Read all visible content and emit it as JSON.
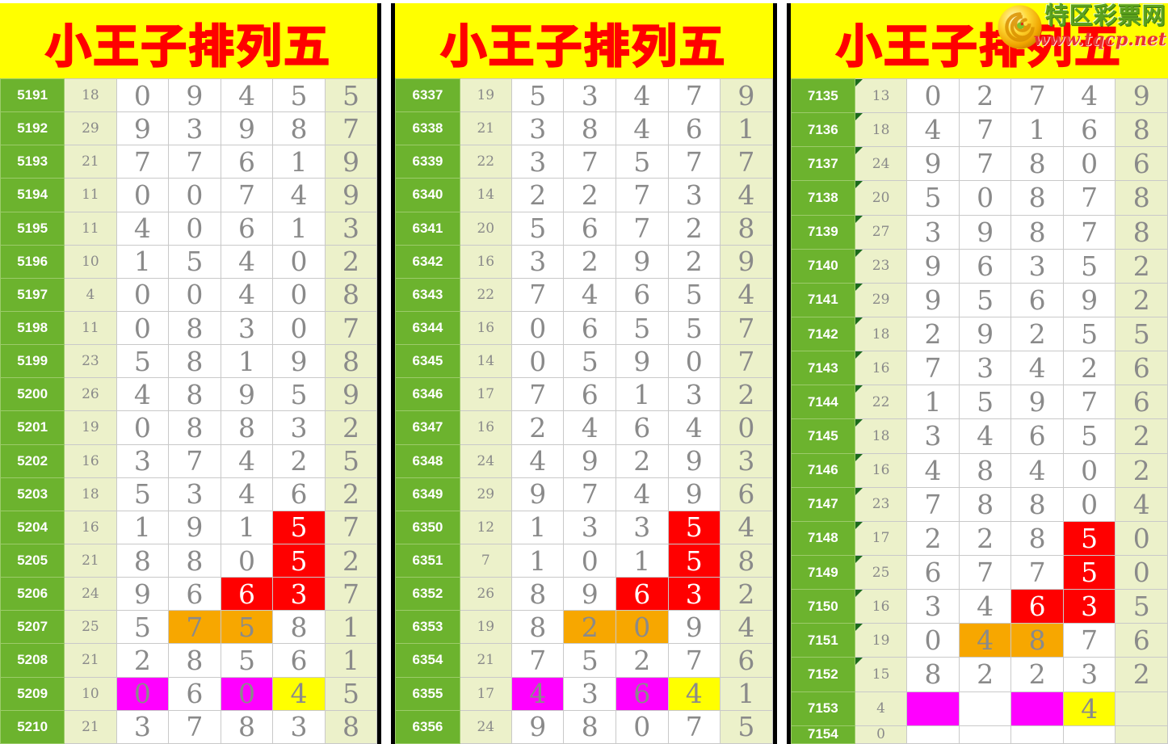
{
  "site": {
    "name": "特区彩票网",
    "url": "www.tqcp.net"
  },
  "colors": {
    "header_background": "#ffff00",
    "title_red": "#ff0000",
    "issue_green": "#6cb32e",
    "pale_cell": "#ecf1ca",
    "digit_gray": "#8a8a8a",
    "highlight_red": "#ff0000",
    "highlight_orange": "#f7a700",
    "highlight_magenta": "#ff00ff",
    "highlight_yellow": "#ffff00",
    "corner_triangle_green": "#1c6b1c",
    "panel_divider": "#000000"
  },
  "panels": [
    {
      "title": "小王子排列五",
      "rows": [
        {
          "issue": "5191",
          "count": "18",
          "digits": [
            "0",
            "9",
            "4",
            "5",
            "5"
          ],
          "hl": [
            "",
            "",
            "",
            "",
            ""
          ]
        },
        {
          "issue": "5192",
          "count": "29",
          "digits": [
            "9",
            "3",
            "9",
            "8",
            "7"
          ],
          "hl": [
            "",
            "",
            "",
            "",
            ""
          ]
        },
        {
          "issue": "5193",
          "count": "21",
          "digits": [
            "7",
            "7",
            "6",
            "1",
            "9"
          ],
          "hl": [
            "",
            "",
            "",
            "",
            ""
          ]
        },
        {
          "issue": "5194",
          "count": "11",
          "digits": [
            "0",
            "0",
            "7",
            "4",
            "9"
          ],
          "hl": [
            "",
            "",
            "",
            "",
            ""
          ]
        },
        {
          "issue": "5195",
          "count": "11",
          "digits": [
            "4",
            "0",
            "6",
            "1",
            "3"
          ],
          "hl": [
            "",
            "",
            "",
            "",
            ""
          ]
        },
        {
          "issue": "5196",
          "count": "10",
          "digits": [
            "1",
            "5",
            "4",
            "0",
            "2"
          ],
          "hl": [
            "",
            "",
            "",
            "",
            ""
          ]
        },
        {
          "issue": "5197",
          "count": "4",
          "digits": [
            "0",
            "0",
            "4",
            "0",
            "8"
          ],
          "hl": [
            "",
            "",
            "",
            "",
            ""
          ]
        },
        {
          "issue": "5198",
          "count": "11",
          "digits": [
            "0",
            "8",
            "3",
            "0",
            "7"
          ],
          "hl": [
            "",
            "",
            "",
            "",
            ""
          ]
        },
        {
          "issue": "5199",
          "count": "23",
          "digits": [
            "5",
            "8",
            "1",
            "9",
            "8"
          ],
          "hl": [
            "",
            "",
            "",
            "",
            ""
          ]
        },
        {
          "issue": "5200",
          "count": "26",
          "digits": [
            "4",
            "8",
            "9",
            "5",
            "9"
          ],
          "hl": [
            "",
            "",
            "",
            "",
            ""
          ]
        },
        {
          "issue": "5201",
          "count": "19",
          "digits": [
            "0",
            "8",
            "8",
            "3",
            "2"
          ],
          "hl": [
            "",
            "",
            "",
            "",
            ""
          ]
        },
        {
          "issue": "5202",
          "count": "16",
          "digits": [
            "3",
            "7",
            "4",
            "2",
            "5"
          ],
          "hl": [
            "",
            "",
            "",
            "",
            ""
          ]
        },
        {
          "issue": "5203",
          "count": "18",
          "digits": [
            "5",
            "3",
            "4",
            "6",
            "2"
          ],
          "hl": [
            "",
            "",
            "",
            "",
            ""
          ]
        },
        {
          "issue": "5204",
          "count": "16",
          "digits": [
            "1",
            "9",
            "1",
            "5",
            "7"
          ],
          "hl": [
            "",
            "",
            "",
            "r",
            ""
          ]
        },
        {
          "issue": "5205",
          "count": "21",
          "digits": [
            "8",
            "8",
            "0",
            "5",
            "2"
          ],
          "hl": [
            "",
            "",
            "",
            "r",
            ""
          ]
        },
        {
          "issue": "5206",
          "count": "24",
          "digits": [
            "9",
            "6",
            "6",
            "3",
            "7"
          ],
          "hl": [
            "",
            "",
            "r",
            "r",
            ""
          ]
        },
        {
          "issue": "5207",
          "count": "25",
          "digits": [
            "5",
            "7",
            "5",
            "8",
            "1"
          ],
          "hl": [
            "",
            "o",
            "o",
            "",
            ""
          ]
        },
        {
          "issue": "5208",
          "count": "21",
          "digits": [
            "2",
            "8",
            "5",
            "6",
            "1"
          ],
          "hl": [
            "",
            "",
            "",
            "",
            ""
          ]
        },
        {
          "issue": "5209",
          "count": "10",
          "digits": [
            "0",
            "6",
            "0",
            "4",
            "5"
          ],
          "hl": [
            "m",
            "",
            "m",
            "y",
            ""
          ]
        },
        {
          "issue": "5210",
          "count": "21",
          "digits": [
            "3",
            "7",
            "8",
            "3",
            "8"
          ],
          "hl": [
            "",
            "",
            "",
            "",
            ""
          ]
        }
      ]
    },
    {
      "title": "小王子排列五",
      "rows": [
        {
          "issue": "6337",
          "count": "19",
          "digits": [
            "5",
            "3",
            "4",
            "7",
            "9"
          ],
          "hl": [
            "",
            "",
            "",
            "",
            ""
          ]
        },
        {
          "issue": "6338",
          "count": "21",
          "digits": [
            "3",
            "8",
            "4",
            "6",
            "1"
          ],
          "hl": [
            "",
            "",
            "",
            "",
            ""
          ]
        },
        {
          "issue": "6339",
          "count": "22",
          "digits": [
            "3",
            "7",
            "5",
            "7",
            "7"
          ],
          "hl": [
            "",
            "",
            "",
            "",
            ""
          ]
        },
        {
          "issue": "6340",
          "count": "14",
          "digits": [
            "2",
            "2",
            "7",
            "3",
            "4"
          ],
          "hl": [
            "",
            "",
            "",
            "",
            ""
          ]
        },
        {
          "issue": "6341",
          "count": "20",
          "digits": [
            "5",
            "6",
            "7",
            "2",
            "8"
          ],
          "hl": [
            "",
            "",
            "",
            "",
            ""
          ]
        },
        {
          "issue": "6342",
          "count": "16",
          "digits": [
            "3",
            "2",
            "9",
            "2",
            "9"
          ],
          "hl": [
            "",
            "",
            "",
            "",
            ""
          ]
        },
        {
          "issue": "6343",
          "count": "22",
          "digits": [
            "7",
            "4",
            "6",
            "5",
            "4"
          ],
          "hl": [
            "",
            "",
            "",
            "",
            ""
          ]
        },
        {
          "issue": "6344",
          "count": "16",
          "digits": [
            "0",
            "6",
            "5",
            "5",
            "7"
          ],
          "hl": [
            "",
            "",
            "",
            "",
            ""
          ]
        },
        {
          "issue": "6345",
          "count": "14",
          "digits": [
            "0",
            "5",
            "9",
            "0",
            "7"
          ],
          "hl": [
            "",
            "",
            "",
            "",
            ""
          ]
        },
        {
          "issue": "6346",
          "count": "17",
          "digits": [
            "7",
            "6",
            "1",
            "3",
            "2"
          ],
          "hl": [
            "",
            "",
            "",
            "",
            ""
          ]
        },
        {
          "issue": "6347",
          "count": "16",
          "digits": [
            "2",
            "4",
            "6",
            "4",
            "0"
          ],
          "hl": [
            "",
            "",
            "",
            "",
            ""
          ]
        },
        {
          "issue": "6348",
          "count": "24",
          "digits": [
            "4",
            "9",
            "2",
            "9",
            "3"
          ],
          "hl": [
            "",
            "",
            "",
            "",
            ""
          ]
        },
        {
          "issue": "6349",
          "count": "29",
          "digits": [
            "9",
            "7",
            "4",
            "9",
            "6"
          ],
          "hl": [
            "",
            "",
            "",
            "",
            ""
          ]
        },
        {
          "issue": "6350",
          "count": "12",
          "digits": [
            "1",
            "3",
            "3",
            "5",
            "4"
          ],
          "hl": [
            "",
            "",
            "",
            "r",
            ""
          ]
        },
        {
          "issue": "6351",
          "count": "7",
          "digits": [
            "1",
            "0",
            "1",
            "5",
            "8"
          ],
          "hl": [
            "",
            "",
            "",
            "r",
            ""
          ]
        },
        {
          "issue": "6352",
          "count": "26",
          "digits": [
            "8",
            "9",
            "6",
            "3",
            "2"
          ],
          "hl": [
            "",
            "",
            "r",
            "r",
            ""
          ]
        },
        {
          "issue": "6353",
          "count": "19",
          "digits": [
            "8",
            "2",
            "0",
            "9",
            "4"
          ],
          "hl": [
            "",
            "o",
            "o",
            "",
            ""
          ]
        },
        {
          "issue": "6354",
          "count": "21",
          "digits": [
            "7",
            "5",
            "2",
            "7",
            "6"
          ],
          "hl": [
            "",
            "",
            "",
            "",
            ""
          ]
        },
        {
          "issue": "6355",
          "count": "17",
          "digits": [
            "4",
            "3",
            "6",
            "4",
            "1"
          ],
          "hl": [
            "m",
            "",
            "m",
            "y",
            ""
          ]
        },
        {
          "issue": "6356",
          "count": "24",
          "digits": [
            "9",
            "8",
            "0",
            "7",
            "5"
          ],
          "hl": [
            "",
            "",
            "",
            "",
            ""
          ]
        }
      ]
    },
    {
      "title": "小王子排列五",
      "rows": [
        {
          "issue": "7135",
          "count": "13",
          "digits": [
            "0",
            "2",
            "7",
            "4",
            "9"
          ],
          "hl": [
            "",
            "",
            "",
            "",
            ""
          ],
          "tri": true
        },
        {
          "issue": "7136",
          "count": "18",
          "digits": [
            "4",
            "7",
            "1",
            "6",
            "8"
          ],
          "hl": [
            "",
            "",
            "",
            "",
            ""
          ],
          "tri": true
        },
        {
          "issue": "7137",
          "count": "24",
          "digits": [
            "9",
            "7",
            "8",
            "0",
            "6"
          ],
          "hl": [
            "",
            "",
            "",
            "",
            ""
          ],
          "tri": true
        },
        {
          "issue": "7138",
          "count": "20",
          "digits": [
            "5",
            "0",
            "8",
            "7",
            "8"
          ],
          "hl": [
            "",
            "",
            "",
            "",
            ""
          ],
          "tri": true
        },
        {
          "issue": "7139",
          "count": "27",
          "digits": [
            "3",
            "9",
            "8",
            "7",
            "8"
          ],
          "hl": [
            "",
            "",
            "",
            "",
            ""
          ],
          "tri": true
        },
        {
          "issue": "7140",
          "count": "23",
          "digits": [
            "9",
            "6",
            "3",
            "5",
            "2"
          ],
          "hl": [
            "",
            "",
            "",
            "",
            ""
          ],
          "tri": true
        },
        {
          "issue": "7141",
          "count": "29",
          "digits": [
            "9",
            "5",
            "6",
            "9",
            "2"
          ],
          "hl": [
            "",
            "",
            "",
            "",
            ""
          ],
          "tri": true
        },
        {
          "issue": "7142",
          "count": "18",
          "digits": [
            "2",
            "9",
            "2",
            "5",
            "5"
          ],
          "hl": [
            "",
            "",
            "",
            "",
            ""
          ],
          "tri": true
        },
        {
          "issue": "7143",
          "count": "16",
          "digits": [
            "7",
            "3",
            "4",
            "2",
            "6"
          ],
          "hl": [
            "",
            "",
            "",
            "",
            ""
          ],
          "tri": true
        },
        {
          "issue": "7144",
          "count": "22",
          "digits": [
            "1",
            "5",
            "9",
            "7",
            "6"
          ],
          "hl": [
            "",
            "",
            "",
            "",
            ""
          ],
          "tri": true
        },
        {
          "issue": "7145",
          "count": "18",
          "digits": [
            "3",
            "4",
            "6",
            "5",
            "2"
          ],
          "hl": [
            "",
            "",
            "",
            "",
            ""
          ],
          "tri": true
        },
        {
          "issue": "7146",
          "count": "16",
          "digits": [
            "4",
            "8",
            "4",
            "0",
            "2"
          ],
          "hl": [
            "",
            "",
            "",
            "",
            ""
          ],
          "tri": true
        },
        {
          "issue": "7147",
          "count": "23",
          "digits": [
            "7",
            "8",
            "8",
            "0",
            "4"
          ],
          "hl": [
            "",
            "",
            "",
            "",
            ""
          ],
          "tri": true
        },
        {
          "issue": "7148",
          "count": "17",
          "digits": [
            "2",
            "2",
            "8",
            "5",
            "0"
          ],
          "hl": [
            "",
            "",
            "",
            "r",
            ""
          ],
          "tri": true
        },
        {
          "issue": "7149",
          "count": "25",
          "digits": [
            "6",
            "7",
            "7",
            "5",
            "0"
          ],
          "hl": [
            "",
            "",
            "",
            "r",
            ""
          ],
          "tri": true
        },
        {
          "issue": "7150",
          "count": "16",
          "digits": [
            "3",
            "4",
            "6",
            "3",
            "5"
          ],
          "hl": [
            "",
            "",
            "r",
            "r",
            ""
          ],
          "tri": true
        },
        {
          "issue": "7151",
          "count": "19",
          "digits": [
            "0",
            "4",
            "8",
            "7",
            "6"
          ],
          "hl": [
            "",
            "o",
            "o",
            "",
            ""
          ],
          "tri": true
        },
        {
          "issue": "7152",
          "count": "15",
          "digits": [
            "8",
            "2",
            "2",
            "3",
            "2"
          ],
          "hl": [
            "",
            "",
            "",
            "",
            ""
          ],
          "tri": true
        },
        {
          "issue": "7153",
          "count": "4",
          "digits": [
            "",
            "",
            "",
            "4",
            ""
          ],
          "hl": [
            "m",
            "",
            "m",
            "y",
            ""
          ]
        },
        {
          "issue": "7154",
          "count": "0",
          "digits": [
            "",
            "",
            "",
            "",
            ""
          ],
          "hl": [
            "",
            "",
            "",
            "",
            ""
          ]
        }
      ]
    }
  ]
}
